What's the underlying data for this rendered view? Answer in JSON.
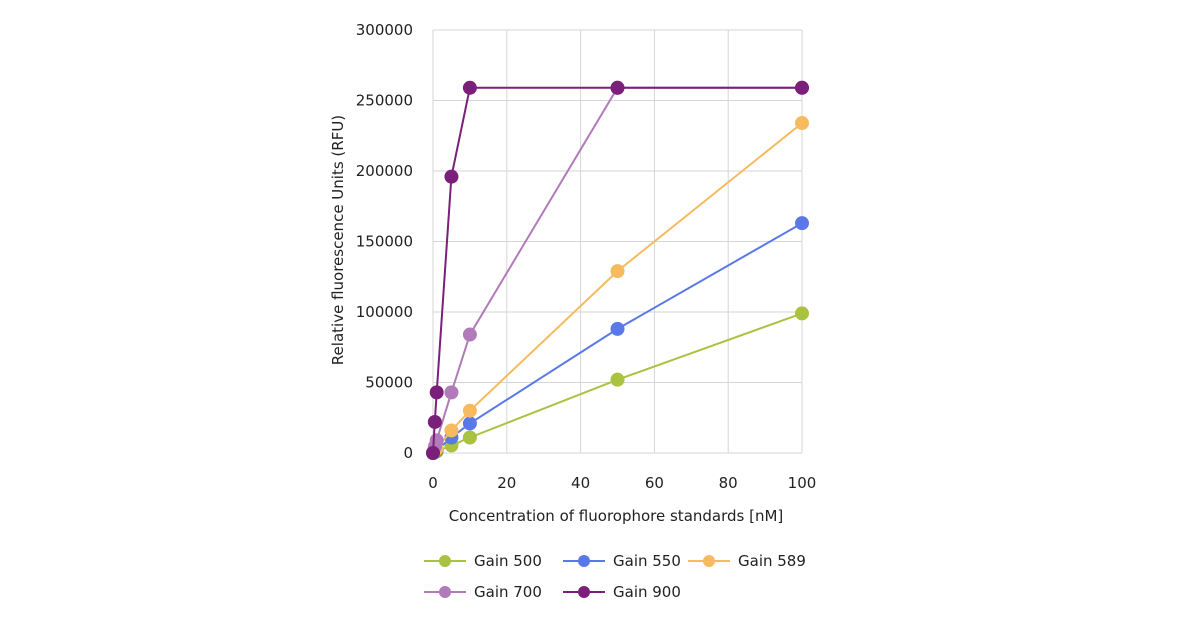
{
  "chart_data": {
    "type": "line",
    "title": "",
    "xlabel": "Concentration of fluorophore standards [nM]",
    "ylabel": "Relative fluorescence Units (RFU)",
    "xlim": [
      0,
      100
    ],
    "ylim": [
      0,
      300000
    ],
    "xticks": [
      0,
      20,
      40,
      60,
      80,
      100
    ],
    "yticks": [
      0,
      50000,
      100000,
      150000,
      200000,
      250000,
      300000
    ],
    "grid": true,
    "legend_position": "bottom",
    "series": [
      {
        "name": "Gain 500",
        "color": "#a9c23f",
        "x": [
          0,
          0.5,
          1,
          5,
          10,
          50,
          100
        ],
        "y": [
          0,
          600,
          1100,
          5400,
          11000,
          52000,
          99000
        ]
      },
      {
        "name": "Gain 550",
        "color": "#5b78e8",
        "x": [
          0,
          0.5,
          1,
          5,
          10,
          50,
          100
        ],
        "y": [
          0,
          1000,
          2000,
          11000,
          21000,
          88000,
          163000
        ]
      },
      {
        "name": "Gain 589",
        "color": "#f5bb5e",
        "x": [
          0,
          0.5,
          1,
          5,
          10,
          50,
          100
        ],
        "y": [
          0,
          1500,
          3000,
          16000,
          30000,
          129000,
          234000
        ]
      },
      {
        "name": "Gain 700",
        "color": "#b07bb8",
        "x": [
          0,
          0.5,
          1,
          5,
          10,
          50,
          100
        ],
        "y": [
          0,
          4500,
          9000,
          43000,
          84000,
          259000,
          259000
        ]
      },
      {
        "name": "Gain 900",
        "color": "#7a1f7a",
        "x": [
          0,
          0.5,
          1,
          5,
          10,
          50,
          100
        ],
        "y": [
          0,
          22000,
          43000,
          196000,
          259000,
          259000,
          259000
        ]
      }
    ]
  }
}
